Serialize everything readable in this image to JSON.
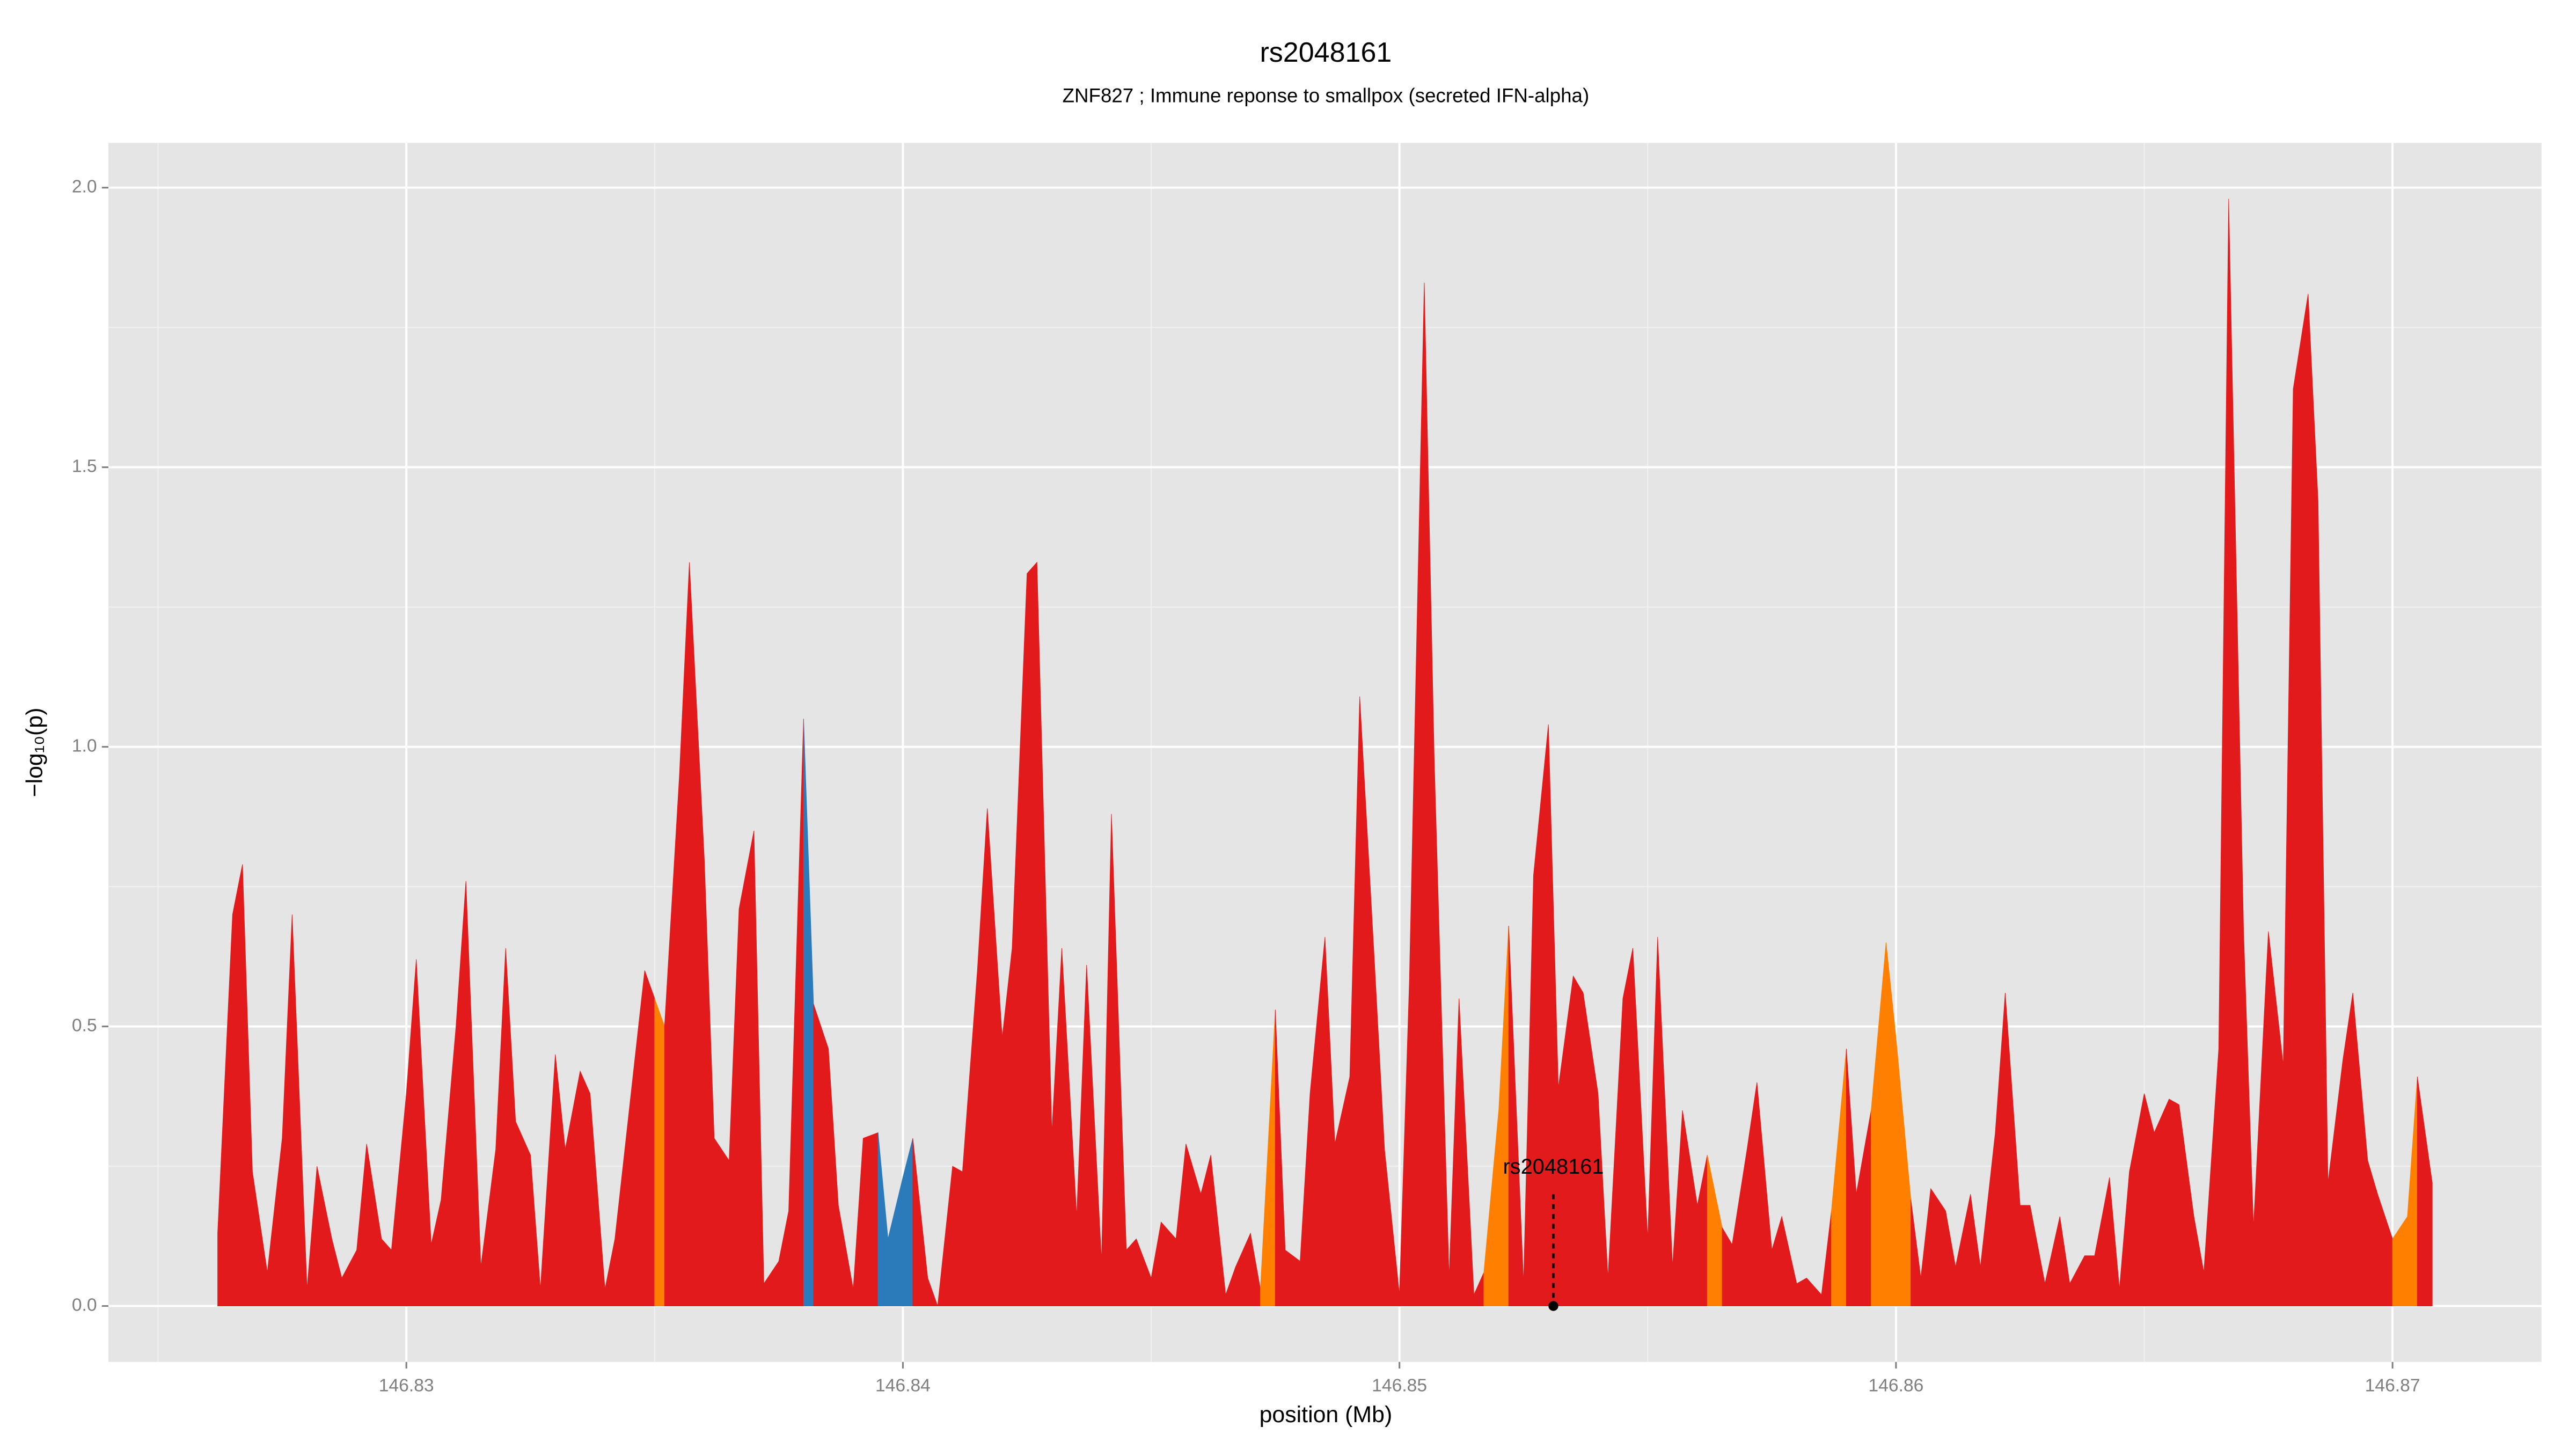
{
  "chart_data": {
    "type": "area",
    "title": "rs2048161",
    "subtitle": "ZNF827 ; Immune reponse to smallpox (secreted IFN-alpha)",
    "x_label": "position (Mb)",
    "y_label": "−log₁₀(p)",
    "xlim": [
      146.824,
      146.873
    ],
    "ylim": [
      -0.1,
      2.08
    ],
    "xticks": [
      146.83,
      146.84,
      146.85,
      146.86,
      146.87
    ],
    "yticks": [
      {
        "value": 0,
        "label": "0.0"
      },
      0.5,
      {
        "value": 1,
        "label": "1.0"
      },
      1.5,
      {
        "value": 2,
        "label": "2.0"
      }
    ],
    "grid": true,
    "annotation": {
      "text": "rs2048161",
      "x": 146.8531,
      "y": 0
    },
    "series": [
      {
        "color": "#e31a1c",
        "x": [
          146.8262,
          146.8265,
          146.8267,
          146.8269,
          146.8272,
          146.8275,
          146.8277,
          146.828,
          146.8282,
          146.8285,
          146.8287,
          146.829,
          146.8292,
          146.8295,
          146.8297,
          146.83,
          146.8302,
          146.8305,
          146.8307,
          146.831,
          146.8312,
          146.8315,
          146.8318,
          146.832,
          146.8322,
          146.8325,
          146.8327,
          146.833,
          146.8332,
          146.8335,
          146.8337,
          146.834,
          146.8342,
          146.8345,
          146.8348,
          146.835
        ],
        "values": [
          0.13,
          0.7,
          0.79,
          0.24,
          0.06,
          0.3,
          0.7,
          0.03,
          0.25,
          0.12,
          0.05,
          0.1,
          0.29,
          0.12,
          0.1,
          0.38,
          0.62,
          0.11,
          0.19,
          0.5,
          0.76,
          0.07,
          0.28,
          0.64,
          0.33,
          0.27,
          0.03,
          0.45,
          0.28,
          0.42,
          0.38,
          0.03,
          0.12,
          0.36,
          0.6,
          0.55
        ]
      },
      {
        "color": "#ff7f00",
        "x": [
          146.835,
          146.8352
        ],
        "values": [
          0.55,
          0.5
        ]
      },
      {
        "color": "#e31a1c",
        "x": [
          146.8352,
          146.8355,
          146.8357,
          146.836,
          146.8362,
          146.8365,
          146.8367,
          146.837,
          146.8372,
          146.8375,
          146.8377,
          146.838
        ],
        "values": [
          0.5,
          0.95,
          1.33,
          0.8,
          0.3,
          0.26,
          0.71,
          0.85,
          0.04,
          0.08,
          0.17,
          1.05
        ]
      },
      {
        "color": "#2b7bba",
        "x": [
          146.838,
          146.8382
        ],
        "values": [
          1.05,
          0.54
        ]
      },
      {
        "color": "#e31a1c",
        "x": [
          146.8382,
          146.8385,
          146.8387,
          146.839,
          146.8392,
          146.8395
        ],
        "values": [
          0.54,
          0.46,
          0.18,
          0.03,
          0.3,
          0.31
        ]
      },
      {
        "color": "#2b7bba",
        "x": [
          146.8395,
          146.8397,
          146.84,
          146.8402
        ],
        "values": [
          0.31,
          0.12,
          0.23,
          0.3
        ]
      },
      {
        "color": "#e31a1c",
        "x": [
          146.8402,
          146.8405,
          146.8407,
          146.841,
          146.8412,
          146.8415,
          146.8417,
          146.842,
          146.8422,
          146.8425,
          146.8427,
          146.843,
          146.8432,
          146.8435,
          146.8437,
          146.844,
          146.8442,
          146.8445,
          146.8447,
          146.845,
          146.8452,
          146.8455,
          146.8457,
          146.846,
          146.8462,
          146.8465,
          146.8467,
          146.847,
          146.8472
        ],
        "values": [
          0.3,
          0.05,
          0.0,
          0.25,
          0.24,
          0.6,
          0.89,
          0.48,
          0.64,
          1.31,
          1.33,
          0.31,
          0.64,
          0.16,
          0.61,
          0.08,
          0.88,
          0.1,
          0.12,
          0.05,
          0.15,
          0.12,
          0.29,
          0.2,
          0.27,
          0.02,
          0.07,
          0.13,
          0.03
        ]
      },
      {
        "color": "#ff7f00",
        "x": [
          146.8472,
          146.8475
        ],
        "values": [
          0.03,
          0.53
        ]
      },
      {
        "color": "#e31a1c",
        "x": [
          146.8475,
          146.8477,
          146.848,
          146.8482,
          146.8485,
          146.8487,
          146.849,
          146.8492,
          146.8495,
          146.8497,
          146.85,
          146.8502,
          146.8505,
          146.8507,
          146.851,
          146.8512,
          146.8515,
          146.8517
        ],
        "values": [
          0.53,
          0.1,
          0.08,
          0.38,
          0.66,
          0.29,
          0.41,
          1.09,
          0.61,
          0.28,
          0.02,
          0.58,
          1.83,
          0.98,
          0.05,
          0.55,
          0.02,
          0.06
        ]
      },
      {
        "color": "#ff7f00",
        "x": [
          146.8517,
          146.852,
          146.8522
        ],
        "values": [
          0.06,
          0.35,
          0.68
        ]
      },
      {
        "color": "#e31a1c",
        "x": [
          146.8522,
          146.8525,
          146.8527,
          146.853,
          146.8532,
          146.8535,
          146.8537,
          146.854,
          146.8542,
          146.8545,
          146.8547,
          146.855,
          146.8552,
          146.8555,
          146.8557,
          146.856,
          146.8562
        ],
        "values": [
          0.68,
          0.04,
          0.77,
          1.04,
          0.39,
          0.59,
          0.56,
          0.38,
          0.05,
          0.55,
          0.64,
          0.12,
          0.66,
          0.07,
          0.35,
          0.18,
          0.27
        ]
      },
      {
        "color": "#ff7f00",
        "x": [
          146.8562,
          146.8565
        ],
        "values": [
          0.27,
          0.14
        ]
      },
      {
        "color": "#e31a1c",
        "x": [
          146.8565,
          146.8567,
          146.857,
          146.8572,
          146.8575,
          146.8577,
          146.858,
          146.8582,
          146.8585,
          146.8587
        ],
        "values": [
          0.14,
          0.11,
          0.28,
          0.4,
          0.1,
          0.16,
          0.04,
          0.05,
          0.02,
          0.17
        ]
      },
      {
        "color": "#ff7f00",
        "x": [
          146.8587,
          146.859
        ],
        "values": [
          0.17,
          0.46
        ]
      },
      {
        "color": "#e31a1c",
        "x": [
          146.859,
          146.8592,
          146.8595
        ],
        "values": [
          0.46,
          0.2,
          0.35
        ]
      },
      {
        "color": "#ff7f00",
        "x": [
          146.8595,
          146.8598,
          146.86,
          146.8603
        ],
        "values": [
          0.35,
          0.65,
          0.48,
          0.19
        ]
      },
      {
        "color": "#e31a1c",
        "x": [
          146.8603,
          146.8605,
          146.8607,
          146.861,
          146.8612,
          146.8615,
          146.8617,
          146.862,
          146.8622,
          146.8625,
          146.8627,
          146.863,
          146.8633,
          146.8635,
          146.8638,
          146.864,
          146.8643,
          146.8645,
          146.8647,
          146.865,
          146.8652,
          146.8655,
          146.8657,
          146.866,
          146.8662,
          146.8665,
          146.8667,
          146.867,
          146.8672,
          146.8675,
          146.8678,
          146.868,
          146.8683,
          146.8685,
          146.8687,
          146.869,
          146.8692,
          146.8695,
          146.8697,
          146.87
        ],
        "values": [
          0.19,
          0.05,
          0.21,
          0.17,
          0.07,
          0.2,
          0.07,
          0.31,
          0.56,
          0.18,
          0.18,
          0.04,
          0.16,
          0.04,
          0.09,
          0.09,
          0.23,
          0.03,
          0.24,
          0.38,
          0.31,
          0.37,
          0.36,
          0.16,
          0.06,
          0.46,
          1.98,
          0.67,
          0.14,
          0.67,
          0.43,
          1.64,
          1.81,
          1.44,
          0.22,
          0.44,
          0.56,
          0.26,
          0.2,
          0.12
        ]
      },
      {
        "color": "#ff7f00",
        "x": [
          146.87,
          146.8703,
          146.8705
        ],
        "values": [
          0.12,
          0.16,
          0.41
        ]
      },
      {
        "color": "#e31a1c",
        "x": [
          146.8705,
          146.8708
        ],
        "values": [
          0.41,
          0.22
        ]
      }
    ]
  }
}
